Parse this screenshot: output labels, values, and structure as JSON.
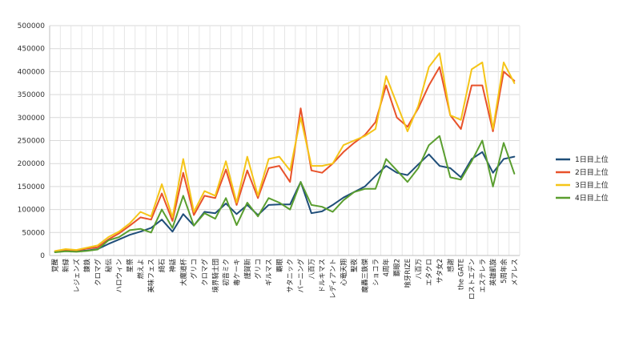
{
  "chart_data": {
    "type": "line",
    "title": "",
    "xlabel": "",
    "ylabel": "",
    "ylim": [
      0,
      500000
    ],
    "yticks": [
      0,
      50000,
      100000,
      150000,
      200000,
      250000,
      300000,
      350000,
      400000,
      450000,
      500000
    ],
    "grid": true,
    "legend_position": "right",
    "categories": [
      "覚醒",
      "新緑",
      "レジェンズ",
      "錬鉄",
      "クロマグ",
      "秘伝",
      "ハロウィン",
      "星祭",
      "燃えよ",
      "美味フェス",
      "綺石",
      "神話",
      "大魔道杯",
      "グリコ",
      "クロマグ",
      "境界騎士団",
      "初音ミク",
      "毒ケーキ",
      "謹賀新",
      "グリコ",
      "ギルマス",
      "覇眼",
      "サタニック",
      "バーニング",
      "八百万",
      "ドルキマス",
      "レディアント",
      "心竜天翔",
      "聖夜",
      "魔轟三鉄傑",
      "ショコラ",
      "4周年",
      "覇眼2",
      "喰牙RIZE",
      "八百万",
      "エタクロ",
      "サタ女2",
      "感謝",
      "the GATE",
      "ロストエデン",
      "エステレラ",
      "英雄凱旋",
      "5周年余",
      "メアレス"
    ],
    "series": [
      {
        "name": "1日目上位",
        "color": "#1f4e79",
        "values": [
          8000,
          10000,
          9000,
          11000,
          14000,
          25000,
          35000,
          45000,
          52000,
          60000,
          78000,
          52000,
          90000,
          65000,
          95000,
          92000,
          113000,
          90000,
          110000,
          88000,
          110000,
          111000,
          111000,
          160000,
          92000,
          96000,
          110000,
          126000,
          138000,
          150000,
          173000,
          195000,
          180000,
          175000,
          198000,
          220000,
          195000,
          190000,
          170000,
          210000,
          225000,
          180000,
          210000,
          215000
        ]
      },
      {
        "name": "2日目上位",
        "color": "#e8522b",
        "values": [
          9000,
          12000,
          11000,
          15000,
          18000,
          35000,
          48000,
          65000,
          83000,
          78000,
          135000,
          75000,
          180000,
          88000,
          130000,
          125000,
          187000,
          110000,
          185000,
          125000,
          190000,
          195000,
          160000,
          320000,
          185000,
          180000,
          200000,
          225000,
          245000,
          262000,
          290000,
          370000,
          300000,
          280000,
          320000,
          370000,
          410000,
          305000,
          275000,
          370000,
          370000,
          270000,
          400000,
          380000
        ]
      },
      {
        "name": "3日目上位",
        "color": "#f5c518",
        "values": [
          10000,
          14000,
          12000,
          17000,
          22000,
          40000,
          52000,
          70000,
          95000,
          85000,
          155000,
          83000,
          210000,
          95000,
          140000,
          130000,
          205000,
          115000,
          215000,
          130000,
          210000,
          215000,
          185000,
          300000,
          195000,
          195000,
          200000,
          240000,
          250000,
          260000,
          275000,
          390000,
          330000,
          270000,
          325000,
          410000,
          440000,
          305000,
          295000,
          405000,
          420000,
          275000,
          420000,
          375000
        ]
      },
      {
        "name": "4日目上位",
        "color": "#5a9e2f",
        "values": [
          7000,
          9000,
          8000,
          10000,
          13000,
          33000,
          40000,
          55000,
          58000,
          50000,
          100000,
          60000,
          130000,
          65000,
          92000,
          80000,
          125000,
          66000,
          115000,
          85000,
          125000,
          115000,
          100000,
          160000,
          110000,
          106000,
          95000,
          120000,
          138000,
          145000,
          145000,
          210000,
          185000,
          160000,
          190000,
          240000,
          260000,
          170000,
          165000,
          205000,
          250000,
          150000,
          245000,
          178000
        ]
      }
    ]
  }
}
